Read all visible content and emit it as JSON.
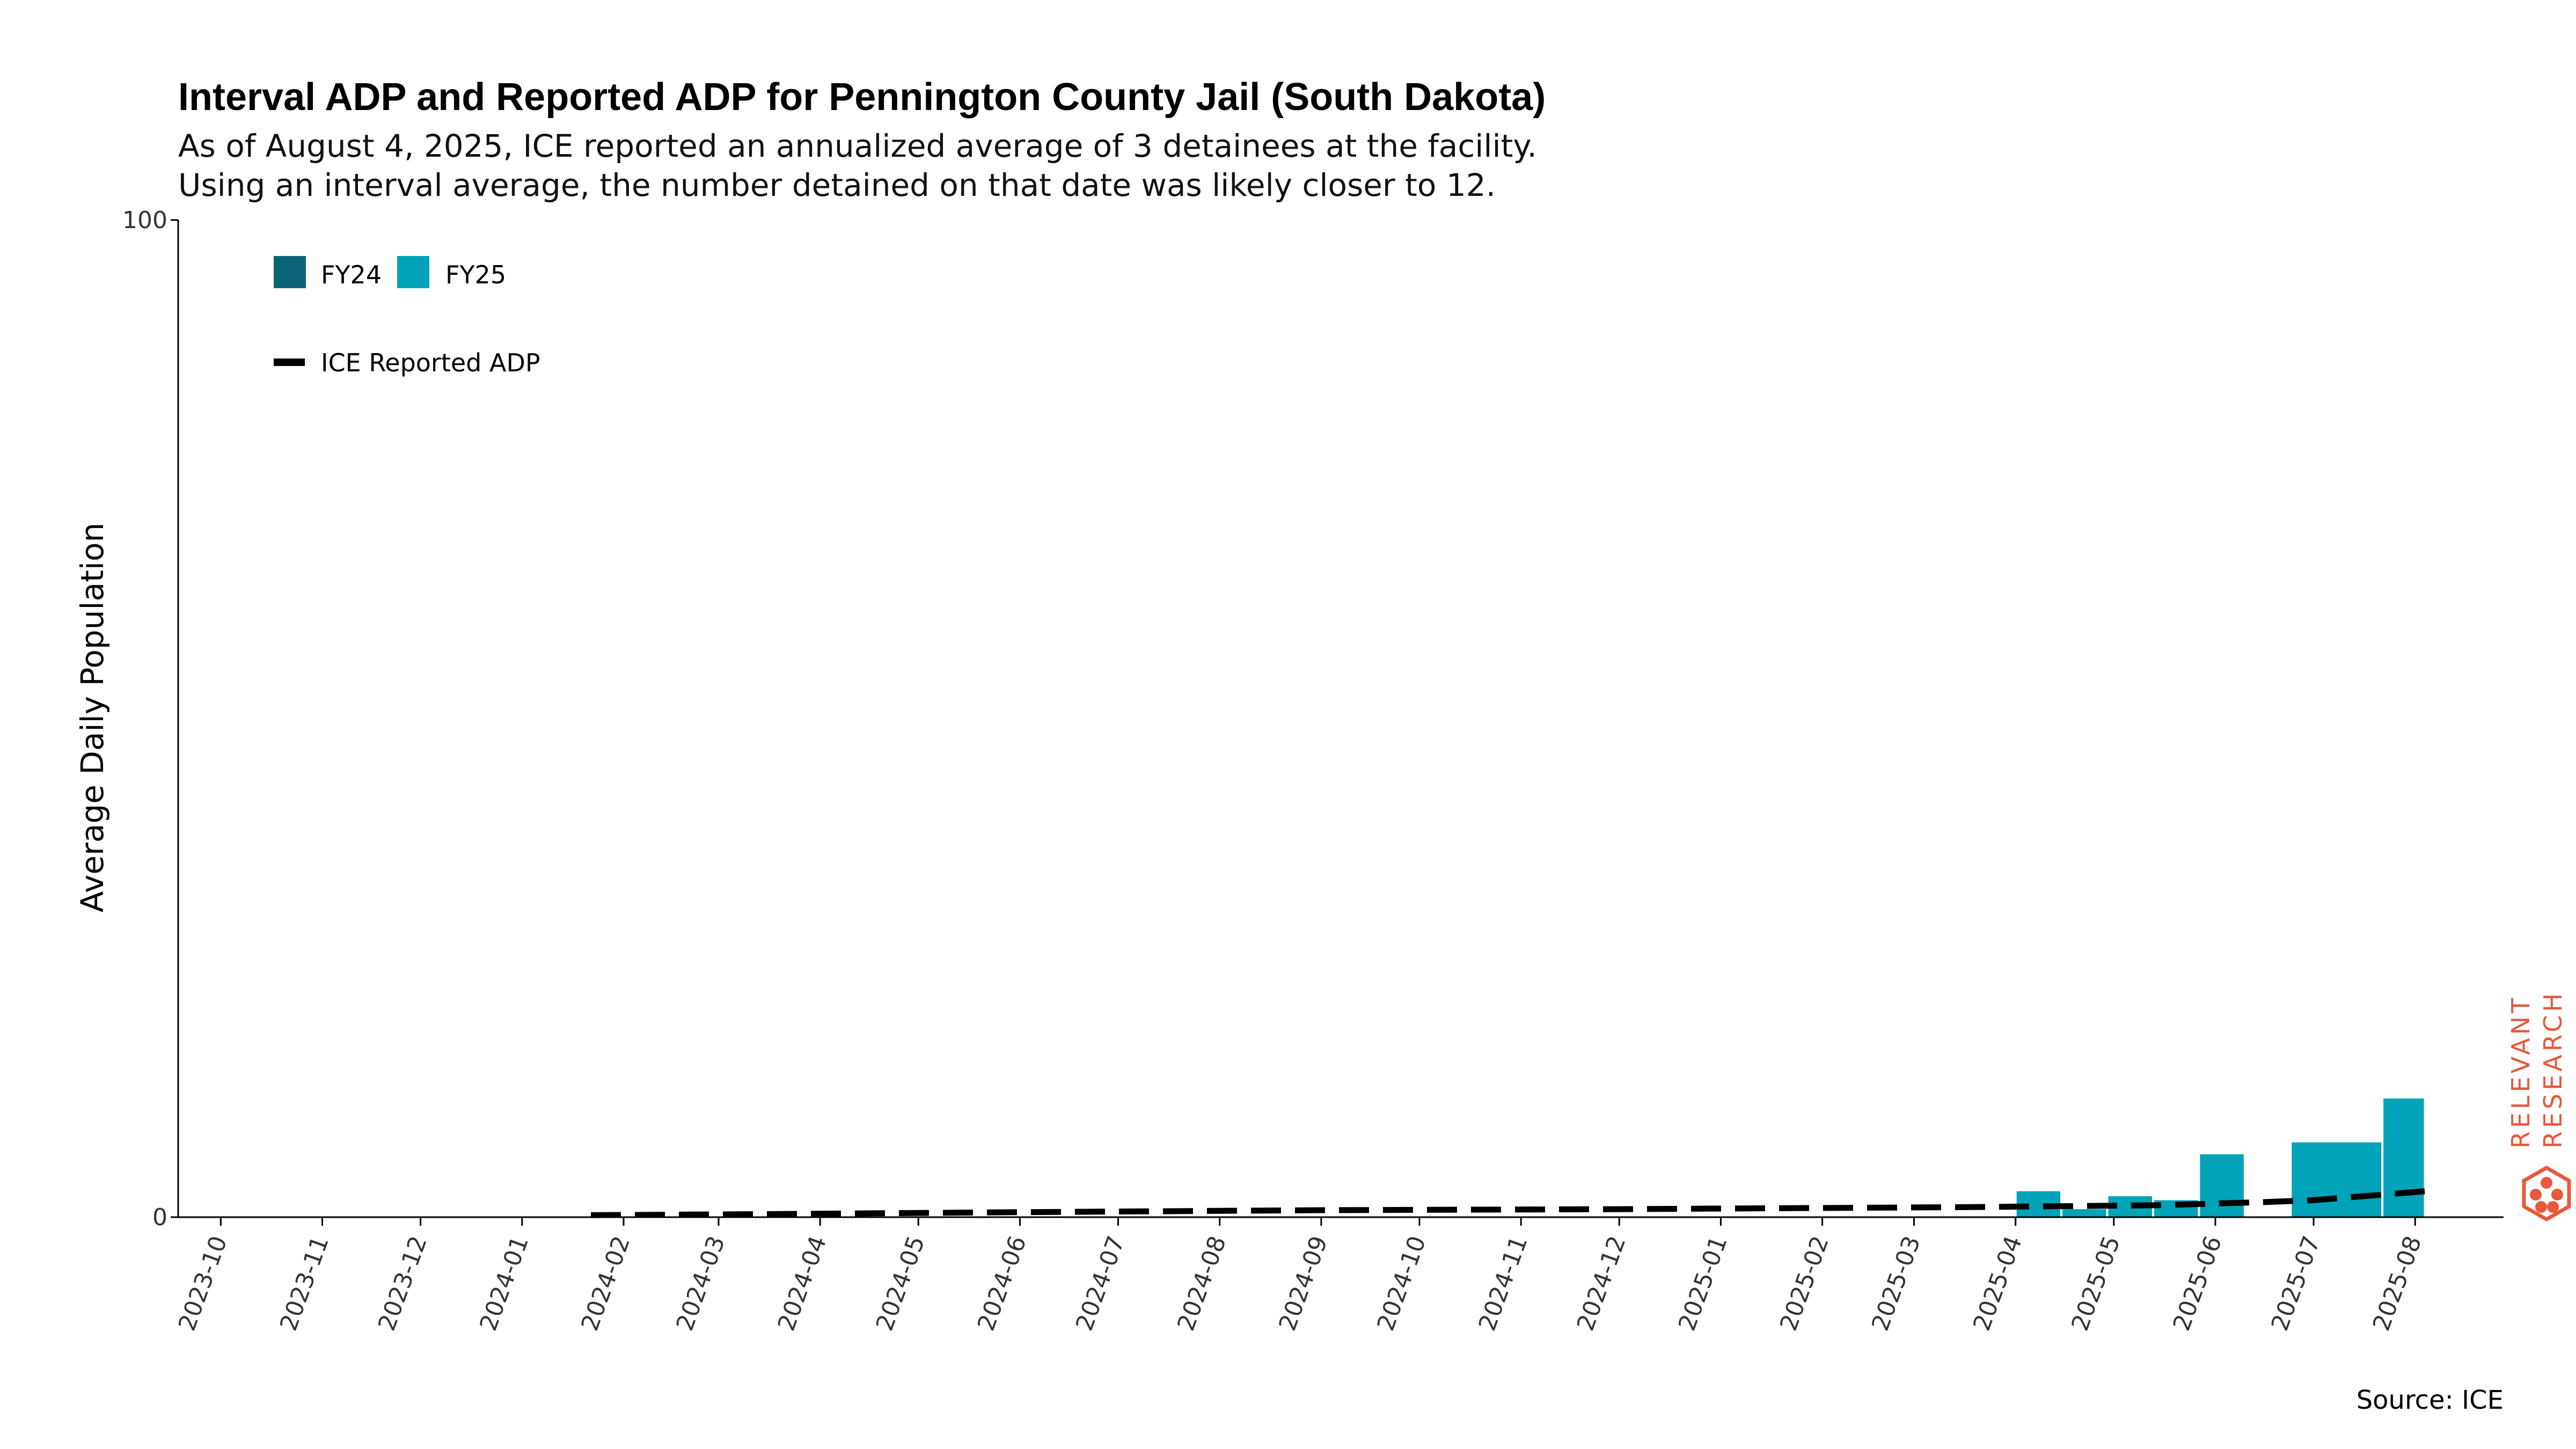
{
  "chart_data": {
    "type": "bar",
    "title": "Interval ADP and Reported ADP for Pennington County Jail (South Dakota)",
    "subtitle": [
      "As of August 4, 2025, ICE reported an annualized average of 3 detainees at the facility.",
      "Using an interval average, the number detained on that date was likely closer to 12."
    ],
    "ylabel": "Average Daily Population",
    "xlabel": "",
    "ylim": [
      0,
      100
    ],
    "y_ticks": [
      "0",
      "100"
    ],
    "x_ticks": [
      "2023-10",
      "2023-11",
      "2023-12",
      "2024-01",
      "2024-02",
      "2024-03",
      "2024-04",
      "2024-05",
      "2024-06",
      "2024-07",
      "2024-08",
      "2024-09",
      "2024-10",
      "2024-11",
      "2024-12",
      "2025-01",
      "2025-02",
      "2025-03",
      "2025-04",
      "2025-05",
      "2025-06",
      "2025-07",
      "2025-08"
    ],
    "x_axis_range": [
      "2023-09-18",
      "2025-08-28"
    ],
    "grid": false,
    "legend": {
      "placement": "top-left",
      "bar_entries": [
        {
          "label": "FY24",
          "color": "#0b6577"
        },
        {
          "label": "FY25",
          "color": "#00a3b8"
        }
      ],
      "line_entries": [
        {
          "label": "ICE Reported ADP",
          "color": "#000000",
          "style": "dashed"
        }
      ]
    },
    "series": [
      {
        "name": "FY24",
        "kind": "interval-bar",
        "color": "#0b6577",
        "intervals": [
          {
            "start": "2024-01-22",
            "end": "2024-09-30",
            "value": 0
          }
        ]
      },
      {
        "name": "FY25",
        "kind": "interval-bar",
        "color": "#00a3b8",
        "intervals": [
          {
            "start": "2024-10-01",
            "end": "2025-03-31",
            "value": 0
          },
          {
            "start": "2025-04-01",
            "end": "2025-04-15",
            "value": 2.6
          },
          {
            "start": "2025-04-15",
            "end": "2025-04-29",
            "value": 0.8
          },
          {
            "start": "2025-04-29",
            "end": "2025-05-13",
            "value": 2.1
          },
          {
            "start": "2025-05-13",
            "end": "2025-05-27",
            "value": 1.7
          },
          {
            "start": "2025-05-27",
            "end": "2025-06-10",
            "value": 6.3
          },
          {
            "start": "2025-06-10",
            "end": "2025-06-24",
            "value": 0
          },
          {
            "start": "2025-06-24",
            "end": "2025-07-22",
            "value": 7.5
          },
          {
            "start": "2025-07-22",
            "end": "2025-08-04",
            "value": 11.9
          }
        ]
      },
      {
        "name": "ICE Reported ADP",
        "kind": "dashed-line",
        "color": "#000000",
        "points": [
          {
            "x": "2024-01-22",
            "y": 0.2
          },
          {
            "x": "2024-03-15",
            "y": 0.3
          },
          {
            "x": "2024-06-01",
            "y": 0.5
          },
          {
            "x": "2024-09-01",
            "y": 0.7
          },
          {
            "x": "2024-12-01",
            "y": 0.8
          },
          {
            "x": "2025-03-15",
            "y": 1.0
          },
          {
            "x": "2025-04-15",
            "y": 1.1
          },
          {
            "x": "2025-05-15",
            "y": 1.2
          },
          {
            "x": "2025-06-15",
            "y": 1.5
          },
          {
            "x": "2025-07-01",
            "y": 1.7
          },
          {
            "x": "2025-08-04",
            "y": 2.6
          }
        ]
      }
    ]
  },
  "source": "Source: ICE",
  "brand": {
    "line1": "RELEVANT",
    "line2": "RESEARCH",
    "color": "#e8583d"
  }
}
